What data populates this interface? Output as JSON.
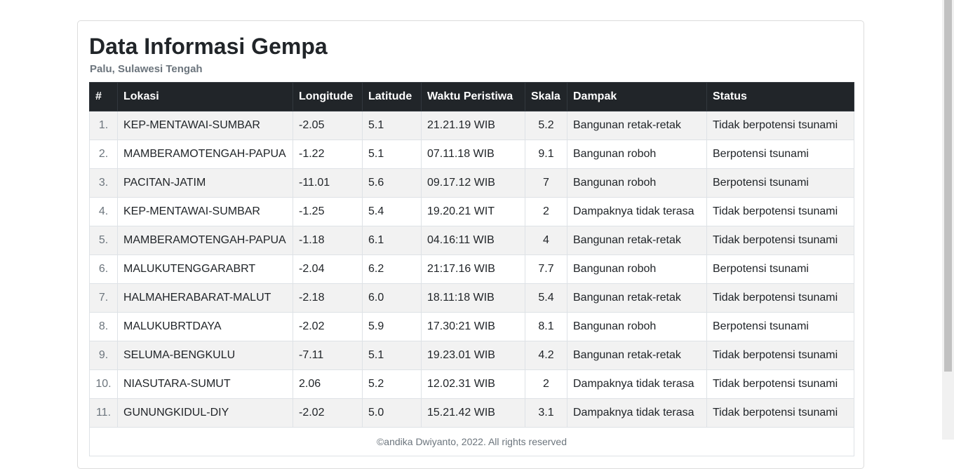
{
  "header": {
    "title": "Data Informasi Gempa",
    "subtitle": "Palu, Sulawesi Tengah"
  },
  "table": {
    "columns": [
      "#",
      "Lokasi",
      "Longitude",
      "Latitude",
      "Waktu Peristiwa",
      "Skala",
      "Dampak",
      "Status"
    ],
    "rows": [
      [
        "1.",
        "KEP-MENTAWAI-SUMBAR",
        "-2.05",
        "5.1",
        "21.21.19 WIB",
        "5.2",
        "Bangunan retak-retak",
        "Tidak berpotensi tsunami"
      ],
      [
        "2.",
        "MAMBERAMOTENGAH-PAPUA",
        "-1.22",
        "5.1",
        "07.11.18 WIB",
        "9.1",
        "Bangunan roboh",
        "Berpotensi tsunami"
      ],
      [
        "3.",
        "PACITAN-JATIM",
        "-11.01",
        "5.6",
        "09.17.12 WIB",
        "7",
        "Bangunan roboh",
        "Berpotensi tsunami"
      ],
      [
        "4.",
        "KEP-MENTAWAI-SUMBAR",
        "-1.25",
        "5.4",
        "19.20.21 WIT",
        "2",
        "Dampaknya tidak terasa",
        "Tidak berpotensi tsunami"
      ],
      [
        "5.",
        "MAMBERAMOTENGAH-PAPUA",
        "-1.18",
        "6.1",
        "04.16:11 WIB",
        "4",
        "Bangunan retak-retak",
        "Tidak berpotensi tsunami"
      ],
      [
        "6.",
        "MALUKUTENGGARABRT",
        "-2.04",
        "6.2",
        "21:17.16 WIB",
        "7.7",
        "Bangunan roboh",
        "Berpotensi tsunami"
      ],
      [
        "7.",
        "HALMAHERABARAT-MALUT",
        "-2.18",
        "6.0",
        "18.11:18 WIB",
        "5.4",
        "Bangunan retak-retak",
        "Tidak berpotensi tsunami"
      ],
      [
        "8.",
        "MALUKUBRTDAYA",
        "-2.02",
        "5.9",
        "17.30:21 WIB",
        "8.1",
        "Bangunan roboh",
        "Berpotensi tsunami"
      ],
      [
        "9.",
        "SELUMA-BENGKULU",
        "-7.11",
        "5.1",
        "19.23.01 WIB",
        "4.2",
        "Bangunan retak-retak",
        "Tidak berpotensi tsunami"
      ],
      [
        "10.",
        "NIASUTARA-SUMUT",
        "2.06",
        "5.2",
        "12.02.31 WIB",
        "2",
        "Dampaknya tidak terasa",
        "Tidak berpotensi tsunami"
      ],
      [
        "11.",
        "GUNUNGKIDUL-DIY",
        "-2.02",
        "5.0",
        "15.21.42 WIB",
        "3.1",
        "Dampaknya tidak terasa",
        "Tidak berpotensi tsunami"
      ]
    ]
  },
  "footer": {
    "text": "©andika Dwiyanto, 2022. All rights reserved"
  }
}
